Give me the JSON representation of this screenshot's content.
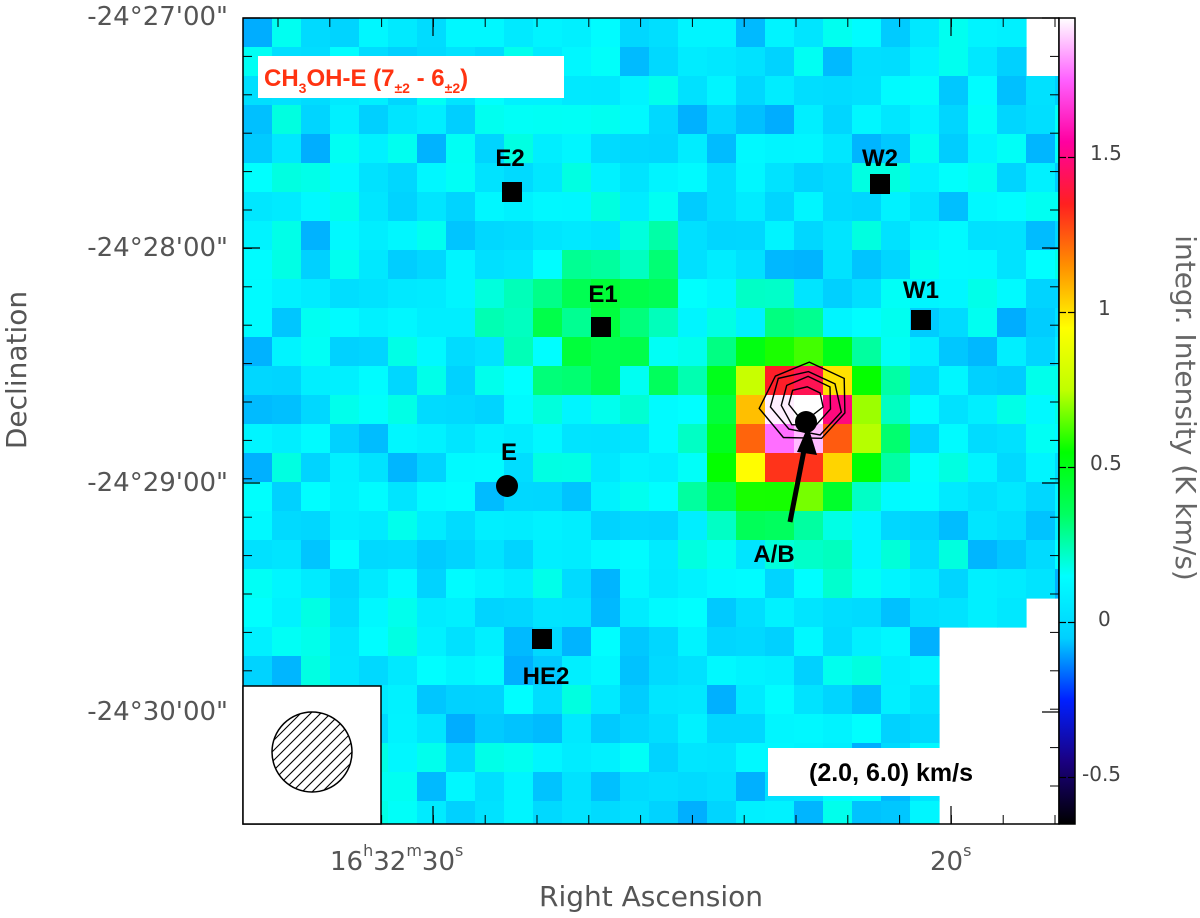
{
  "chart_data": {
    "type": "heatmap",
    "title": "CH3OH-E (7±2 - 6±2)",
    "title_parts": {
      "main": "CH",
      "sub": "3",
      "after": "OH-E (7",
      "sup1": "±2",
      "mid": " - 6",
      "sup2": "±2",
      "close": ")"
    },
    "title_color": "#ff3311",
    "xlabel": "Right Ascension",
    "ylabel": "Declination",
    "colorbar_label": "integr. Intensity (K km/s)",
    "velocity_range": "(2.0, 6.0) km/s",
    "x_ticks": [
      {
        "h": "16",
        "hs": "h",
        "m": "32",
        "ms": "m",
        "s": "30",
        "ss": "s"
      },
      {
        "s": "20",
        "ss": "s"
      }
    ],
    "y_ticks": [
      "-24°27'00\"",
      "-24°28'00\"",
      "-24°29'00\"",
      "-24°30'00\""
    ],
    "colorbar_ticks": [
      "1.5",
      "1",
      "0.5",
      "0",
      "-0.5"
    ],
    "colorbar_tick_values": [
      1.5,
      1.0,
      0.5,
      0.0,
      -0.5
    ],
    "colorbar_range": [
      -0.65,
      1.95
    ],
    "colormap": [
      "#000000",
      "#1a0080",
      "#0020ff",
      "#00d0ff",
      "#00ffff",
      "#00ff60",
      "#00ff00",
      "#c0ff00",
      "#ffff00",
      "#ff9000",
      "#ff2020",
      "#ff00a0",
      "#ff60ff",
      "#ffffff"
    ],
    "grid": false,
    "contour_levels": 4,
    "sources": [
      {
        "label": "E2",
        "marker": "square"
      },
      {
        "label": "W2",
        "marker": "square"
      },
      {
        "label": "E1",
        "marker": "square"
      },
      {
        "label": "W1",
        "marker": "square"
      },
      {
        "label": "E",
        "marker": "circle"
      },
      {
        "label": "A/B",
        "marker": "circle"
      },
      {
        "label": "HE2",
        "marker": "square"
      }
    ],
    "peak_source": "A/B",
    "peak_intensity": 1.9,
    "background_intensity": 0.05
  }
}
